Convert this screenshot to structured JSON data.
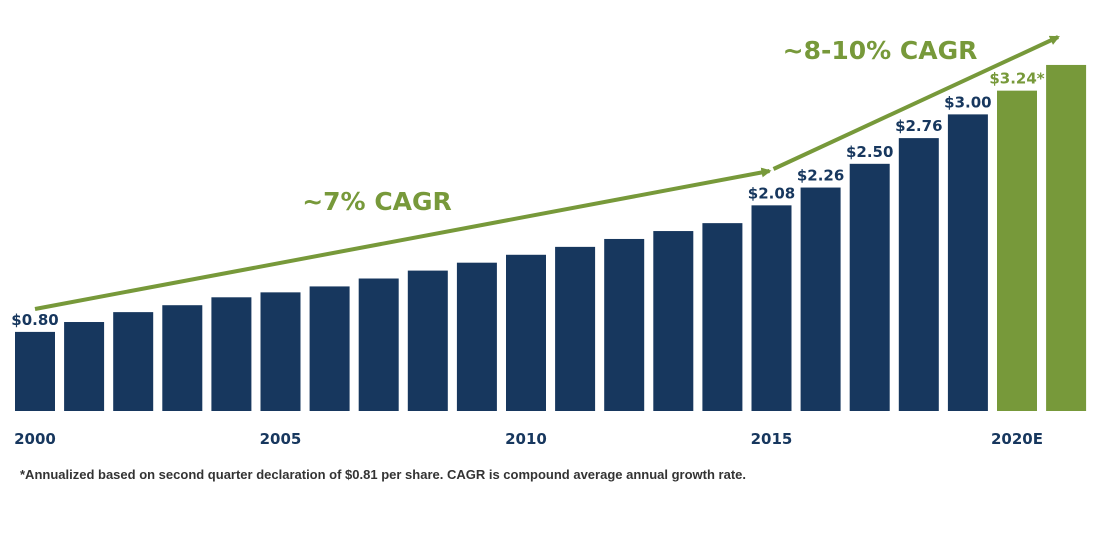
{
  "chart_data": {
    "type": "bar",
    "categories": [
      "2000",
      "2001",
      "2002",
      "2003",
      "2004",
      "2005",
      "2006",
      "2007",
      "2008",
      "2009",
      "2010",
      "2011",
      "2012",
      "2013",
      "2014",
      "2015",
      "2016",
      "2017",
      "2018",
      "2019",
      "2020E",
      "2021E"
    ],
    "values": [
      0.8,
      0.9,
      1.0,
      1.07,
      1.15,
      1.2,
      1.26,
      1.34,
      1.42,
      1.5,
      1.58,
      1.66,
      1.74,
      1.82,
      1.9,
      2.08,
      2.26,
      2.5,
      2.76,
      3.0,
      3.24,
      3.5
    ],
    "value_labels": [
      "$0.80",
      "",
      "",
      "",
      "",
      "",
      "",
      "",
      "",
      "",
      "",
      "",
      "",
      "",
      "",
      "$2.08",
      "$2.26",
      "$2.50",
      "$2.76",
      "$3.00",
      "$3.24*",
      ""
    ],
    "tick_labels": [
      "2000",
      "",
      "",
      "",
      "",
      "2005",
      "",
      "",
      "",
      "",
      "2010",
      "",
      "",
      "",
      "",
      "2015",
      "",
      "",
      "",
      "",
      "2020E",
      ""
    ],
    "estimated_from_index": 20,
    "ylim": [
      0,
      3.55
    ],
    "title": "",
    "xlabel": "",
    "ylabel": "",
    "grid": false,
    "colors": {
      "actual": "#17375e",
      "estimate": "#77993a",
      "label_actual": "#17375e",
      "label_estimate": "#77993a",
      "arrow": "#77993a"
    },
    "annotations": [
      {
        "text": "~7% CAGR",
        "from_category": "2000",
        "to_category": "2015"
      },
      {
        "text": "~8-10% CAGR",
        "from_category": "2015",
        "to_category": "2021E"
      }
    ]
  },
  "footnote": "*Annualized based on second quarter declaration of $0.81 per share. CAGR is compound average annual growth rate."
}
